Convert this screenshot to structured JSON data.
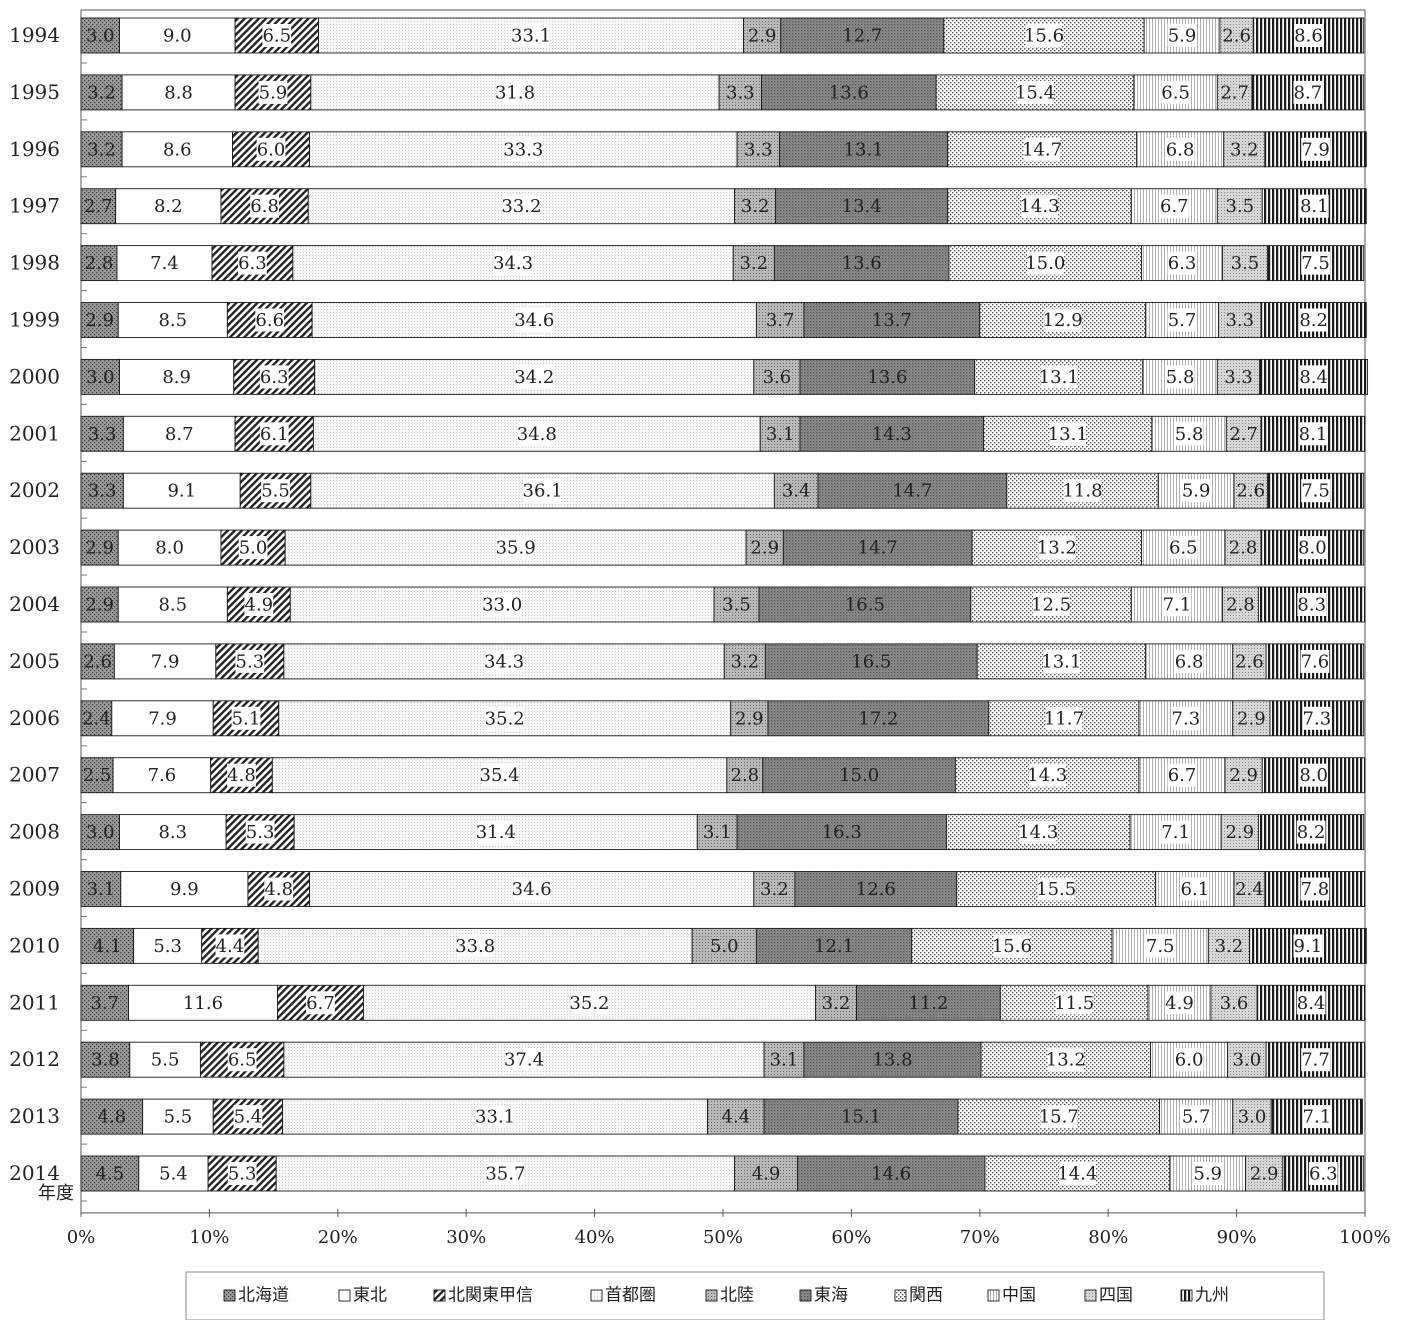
{
  "chart_data": {
    "type": "bar",
    "orientation": "horizontal",
    "stacked": "percent",
    "ylabel": "年度",
    "categories": [
      "1994",
      "1995",
      "1996",
      "1997",
      "1998",
      "1999",
      "2000",
      "2001",
      "2002",
      "2003",
      "2004",
      "2005",
      "2006",
      "2007",
      "2008",
      "2009",
      "2010",
      "2011",
      "2012",
      "2013",
      "2014"
    ],
    "xlim": [
      0,
      100
    ],
    "x_ticks": [
      "0%",
      "10%",
      "20%",
      "30%",
      "40%",
      "50%",
      "60%",
      "70%",
      "80%",
      "90%",
      "100%"
    ],
    "grid": false,
    "legend_position": "bottom",
    "series": [
      {
        "name": "北海道",
        "color": "#8c8c8c",
        "pattern": "dots-dark",
        "values": [
          3.0,
          3.2,
          3.2,
          2.7,
          2.8,
          2.9,
          3.0,
          3.3,
          3.3,
          2.9,
          2.9,
          2.6,
          2.4,
          2.5,
          3.0,
          3.1,
          4.1,
          3.7,
          3.8,
          4.8,
          4.5
        ]
      },
      {
        "name": "東北",
        "color": "#ffffff",
        "pattern": "plain",
        "values": [
          9.0,
          8.8,
          8.6,
          8.2,
          7.4,
          8.5,
          8.9,
          8.7,
          9.1,
          8.0,
          8.5,
          7.9,
          7.9,
          7.6,
          8.3,
          9.9,
          5.3,
          11.6,
          5.5,
          5.5,
          5.4
        ]
      },
      {
        "name": "北関東甲信",
        "color": "#333333",
        "pattern": "diagonal",
        "values": [
          6.5,
          5.9,
          6.0,
          6.8,
          6.3,
          6.6,
          6.3,
          6.1,
          5.5,
          5.0,
          4.9,
          5.3,
          5.1,
          4.8,
          5.3,
          4.8,
          4.4,
          6.7,
          6.5,
          5.4,
          5.3
        ]
      },
      {
        "name": "首都圏",
        "color": "#efefef",
        "pattern": "fine-dots",
        "values": [
          33.1,
          31.8,
          33.3,
          33.2,
          34.3,
          34.6,
          34.2,
          34.8,
          36.1,
          35.9,
          33.0,
          34.3,
          35.2,
          35.4,
          31.4,
          34.6,
          33.8,
          35.2,
          37.4,
          33.1,
          35.7
        ]
      },
      {
        "name": "北陸",
        "color": "#a6a6a6",
        "pattern": "dots-mid",
        "values": [
          2.9,
          3.3,
          3.3,
          3.2,
          3.2,
          3.7,
          3.6,
          3.1,
          3.4,
          2.9,
          3.5,
          3.2,
          2.9,
          2.8,
          3.1,
          3.2,
          5.0,
          3.2,
          3.1,
          4.4,
          4.9
        ]
      },
      {
        "name": "東海",
        "color": "#7a7a7a",
        "pattern": "dots-dense",
        "values": [
          12.7,
          13.6,
          13.1,
          13.4,
          13.6,
          13.7,
          13.6,
          14.3,
          14.7,
          14.7,
          16.5,
          16.5,
          17.2,
          15.0,
          16.3,
          12.6,
          12.1,
          11.2,
          13.8,
          15.1,
          14.6
        ]
      },
      {
        "name": "関西",
        "color": "#dddddd",
        "pattern": "checker",
        "values": [
          15.6,
          15.4,
          14.7,
          14.3,
          15.0,
          12.9,
          13.1,
          13.1,
          11.8,
          13.2,
          12.5,
          13.1,
          11.7,
          14.3,
          14.3,
          15.5,
          15.6,
          11.5,
          13.2,
          15.7,
          14.4
        ]
      },
      {
        "name": "中国",
        "color": "#e6e6e6",
        "pattern": "vlines-light",
        "values": [
          5.9,
          6.5,
          6.8,
          6.7,
          6.3,
          5.7,
          5.8,
          5.8,
          5.9,
          6.5,
          7.1,
          6.8,
          7.3,
          6.7,
          7.1,
          6.1,
          7.5,
          4.9,
          6.0,
          5.7,
          5.9
        ]
      },
      {
        "name": "四国",
        "color": "#c8c8c8",
        "pattern": "dots-light",
        "values": [
          2.6,
          2.7,
          3.2,
          3.5,
          3.5,
          3.3,
          3.3,
          2.7,
          2.6,
          2.8,
          2.8,
          2.6,
          2.9,
          2.9,
          2.9,
          2.4,
          3.2,
          3.6,
          3.0,
          3.0,
          2.9
        ]
      },
      {
        "name": "九州",
        "color": "#1e1e1e",
        "pattern": "vlines-dark",
        "values": [
          8.6,
          8.7,
          7.9,
          8.1,
          7.5,
          8.2,
          8.4,
          8.1,
          7.5,
          8.0,
          8.3,
          7.6,
          7.3,
          8.0,
          8.2,
          7.8,
          9.1,
          8.4,
          7.7,
          7.1,
          6.3
        ]
      }
    ]
  }
}
